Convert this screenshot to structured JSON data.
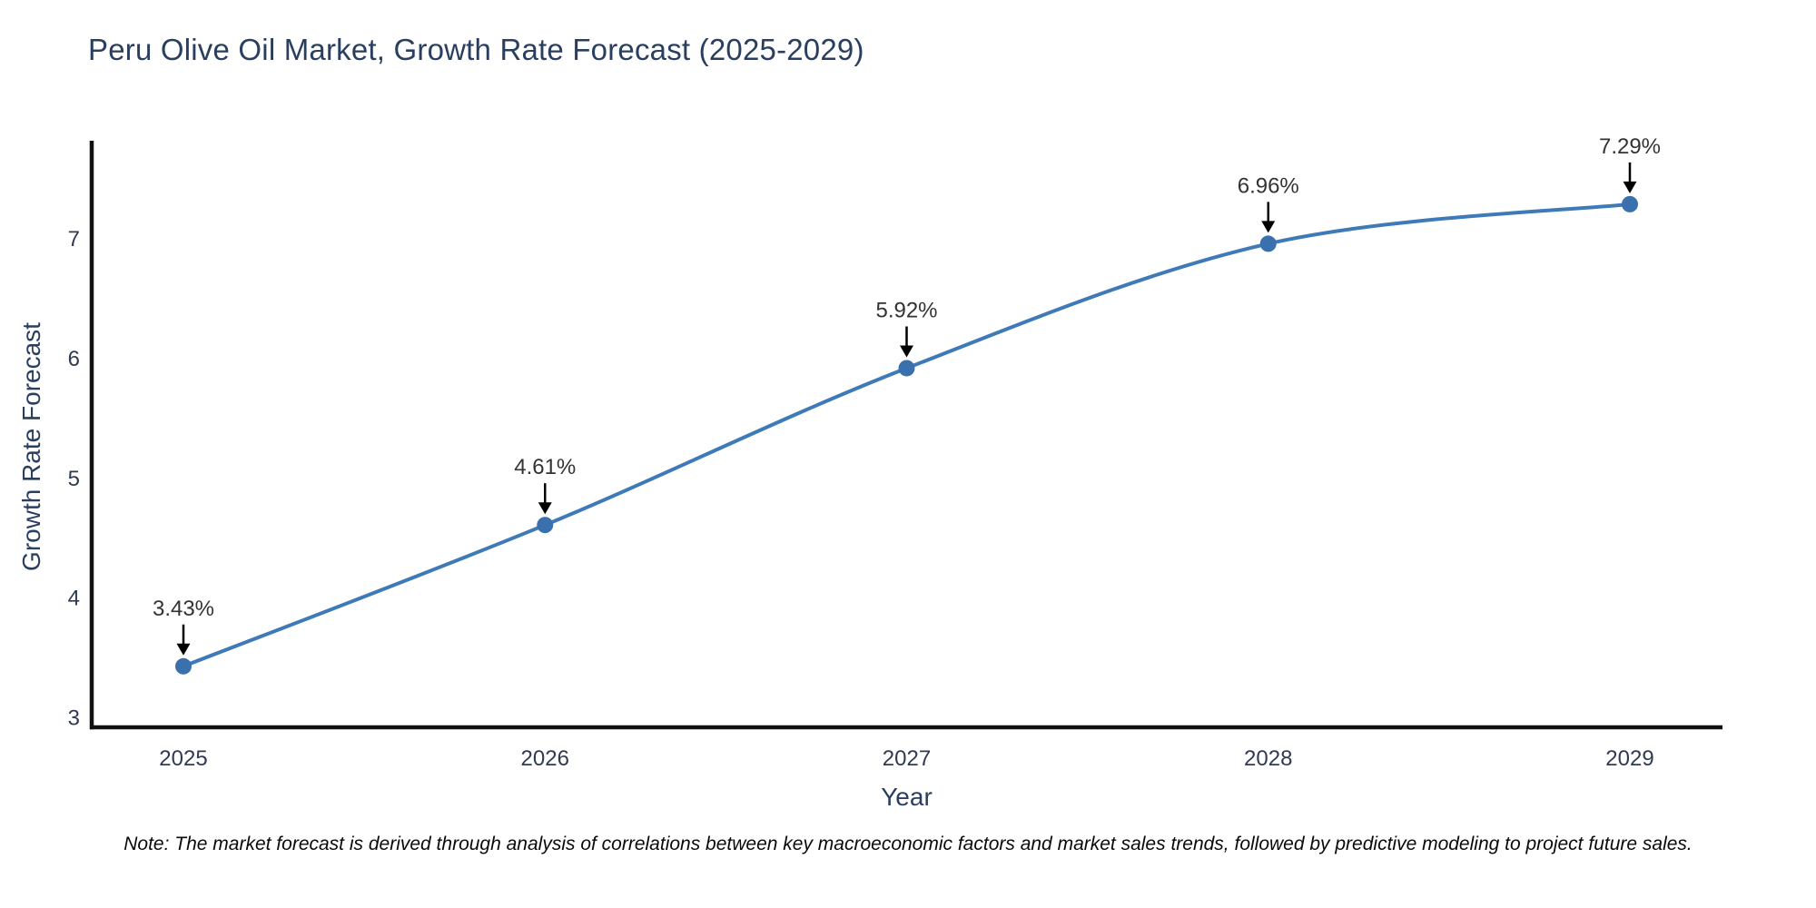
{
  "chart_data": {
    "type": "line",
    "title": "Peru Olive Oil Market, Growth Rate Forecast (2025-2029)",
    "xlabel": "Year",
    "ylabel": "Growth Rate Forecast",
    "categories": [
      "2025",
      "2026",
      "2027",
      "2028",
      "2029"
    ],
    "series": [
      {
        "name": "Growth Rate Forecast",
        "values": [
          3.43,
          4.61,
          5.92,
          6.96,
          7.29
        ],
        "point_labels": [
          "3.43%",
          "4.61%",
          "5.92%",
          "6.96%",
          "7.29%"
        ]
      }
    ],
    "yticks": [
      3,
      4,
      5,
      6,
      7
    ],
    "ylim": [
      2.92,
      7.82
    ],
    "grid": false,
    "legend_position": "none",
    "line_shape": "spline",
    "colors": {
      "line": "#3f7ab8",
      "marker": "#3a70ad",
      "axis_line": "#111111",
      "title_text": "#2a3f5f",
      "tick_text": "#2f3b50",
      "annotation_text": "#333333",
      "annotation_arrow": "#000000",
      "background": "#ffffff"
    },
    "note": "Note: The market forecast is derived through analysis of correlations between key macroeconomic factors and market sales trends, followed by predictive modeling to project future sales."
  }
}
